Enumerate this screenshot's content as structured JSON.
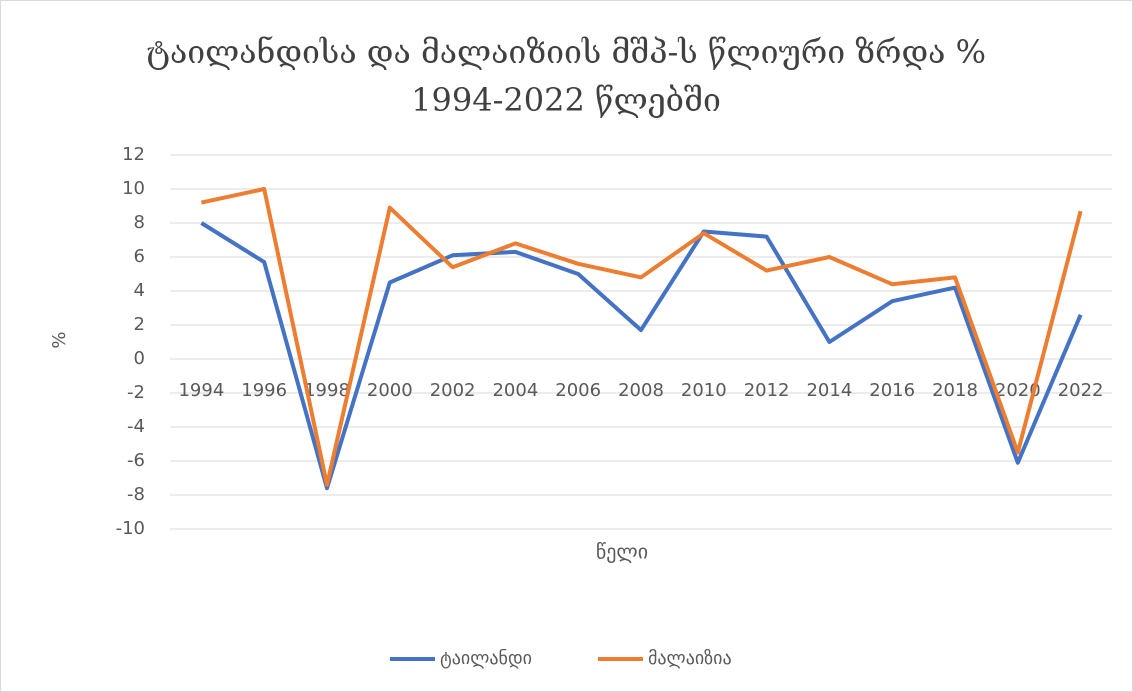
{
  "chart_data": {
    "type": "line",
    "title": "ტაილანდისა და მალაიზიის მშპ-ს  წლიური ზრდა % 1994-2022 წლებში",
    "x_label": "წელი",
    "y_label": "%",
    "categories": [
      "1994",
      "1996",
      "1998",
      "2000",
      "2002",
      "2004",
      "2006",
      "2008",
      "2010",
      "2012",
      "2014",
      "2016",
      "2018",
      "2020",
      "2022"
    ],
    "series": [
      {
        "name": "ტაილანდი",
        "color": "#4472c4",
        "values": [
          8.0,
          5.7,
          -7.6,
          4.5,
          6.1,
          6.3,
          5.0,
          1.7,
          7.5,
          7.2,
          1.0,
          3.4,
          4.2,
          -6.1,
          2.6
        ]
      },
      {
        "name": "მალაიზია",
        "color": "#ed7d31",
        "values": [
          9.2,
          10.0,
          -7.4,
          8.9,
          5.4,
          6.8,
          5.6,
          4.8,
          7.4,
          5.2,
          6.0,
          4.4,
          4.8,
          -5.5,
          8.7
        ]
      }
    ],
    "ylim": [
      -10,
      12
    ],
    "yticks": [
      -10,
      -8,
      -6,
      -4,
      -2,
      0,
      2,
      4,
      6,
      8,
      10,
      12
    ],
    "grid": true,
    "legend": "bottom"
  }
}
